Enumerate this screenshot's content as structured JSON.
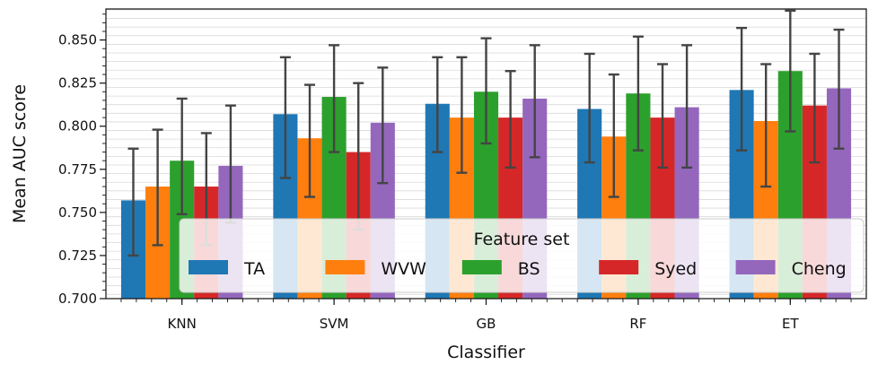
{
  "chart_data": {
    "type": "bar",
    "xlabel": "Classifier",
    "ylabel": "Mean AUC score",
    "categories": [
      "KNN",
      "SVM",
      "GB",
      "RF",
      "ET"
    ],
    "ylim": [
      0.7,
      0.868
    ],
    "yticks": [
      0.7,
      0.725,
      0.75,
      0.775,
      0.8,
      0.825,
      0.85
    ],
    "ytick_labels": [
      "0.700",
      "0.725",
      "0.750",
      "0.775",
      "0.800",
      "0.825",
      "0.850"
    ],
    "grid": "horizontal minor lines",
    "legend": {
      "title": "Feature set",
      "placement": "lower-right"
    },
    "series": [
      {
        "name": "TA",
        "color": "#1f77b4",
        "values": [
          0.757,
          0.807,
          0.813,
          0.81,
          0.821
        ],
        "err_low": [
          0.725,
          0.77,
          0.785,
          0.779,
          0.786
        ],
        "err_high": [
          0.787,
          0.84,
          0.84,
          0.842,
          0.857
        ]
      },
      {
        "name": "WVW",
        "color": "#ff7f0e",
        "values": [
          0.765,
          0.793,
          0.805,
          0.794,
          0.803
        ],
        "err_low": [
          0.731,
          0.759,
          0.773,
          0.759,
          0.765
        ],
        "err_high": [
          0.798,
          0.824,
          0.84,
          0.83,
          0.836
        ]
      },
      {
        "name": "BS",
        "color": "#2ca02c",
        "values": [
          0.78,
          0.817,
          0.82,
          0.819,
          0.832
        ],
        "err_low": [
          0.749,
          0.785,
          0.79,
          0.786,
          0.797
        ],
        "err_high": [
          0.816,
          0.847,
          0.851,
          0.852,
          0.867
        ]
      },
      {
        "name": "Syed",
        "color": "#d62728",
        "values": [
          0.765,
          0.785,
          0.805,
          0.805,
          0.812
        ],
        "err_low": [
          0.731,
          0.74,
          0.776,
          0.776,
          0.779
        ],
        "err_high": [
          0.796,
          0.825,
          0.832,
          0.836,
          0.842
        ]
      },
      {
        "name": "Cheng",
        "color": "#9467bd",
        "values": [
          0.777,
          0.802,
          0.816,
          0.811,
          0.822
        ],
        "err_low": [
          0.744,
          0.767,
          0.782,
          0.776,
          0.787
        ],
        "err_high": [
          0.812,
          0.834,
          0.847,
          0.847,
          0.856
        ]
      }
    ]
  }
}
